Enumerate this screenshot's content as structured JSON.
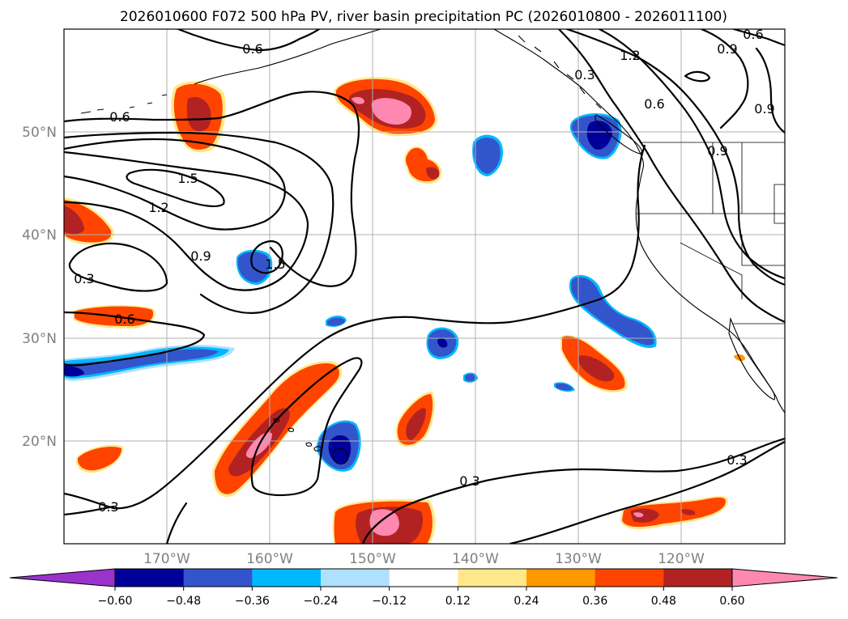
{
  "title": "2026010600 F072 500 hPa PV, river basin precipitation PC (2026010800 - 2026011100)",
  "lat_labels": [
    "50°N",
    "40°N",
    "30°N",
    "20°N"
  ],
  "lon_labels": [
    "170°W",
    "160°W",
    "150°W",
    "140°W",
    "130°W",
    "120°W"
  ],
  "colorbar": {
    "colors": [
      "#9933cc",
      "#000099",
      "#3355cc",
      "#00b8ff",
      "#aee0ff",
      "#ffffff",
      "#ffe88a",
      "#ff9900",
      "#ff4400",
      "#b22222",
      "#ff88b0"
    ],
    "tick_labels": [
      "−0.60",
      "−0.48",
      "−0.36",
      "−0.24",
      "−0.12",
      "0.12",
      "0.24",
      "0.36",
      "0.48",
      "0.60"
    ]
  },
  "pv_contour_labels": [
    "0.6",
    "0.6",
    "1.5",
    "1.2",
    "0.9",
    "1.5",
    "0.3",
    "0.6",
    "1.2",
    "0.3",
    "0.6",
    "0.9",
    "0.6",
    "0.9",
    "0.9",
    "0.3",
    "0.3",
    "0.3"
  ]
}
